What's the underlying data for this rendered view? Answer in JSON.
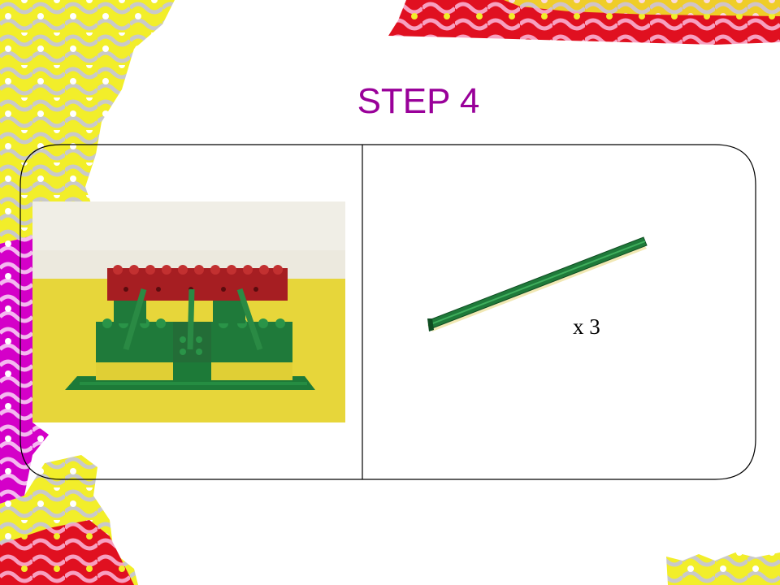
{
  "slide": {
    "title": "STEP 4",
    "quantity_label": "x 3"
  },
  "colors": {
    "title": "#990099",
    "brick_red": "#b22222",
    "brick_green": "#1f7a3a",
    "brick_yellow": "#e8d84a",
    "deco_yellow": "#f2ee2a",
    "deco_magenta": "#d400c8",
    "deco_red": "#e01020"
  },
  "icons": {
    "photo": "duplo-step4-assembly-photo",
    "part": "green-rod-piece"
  }
}
